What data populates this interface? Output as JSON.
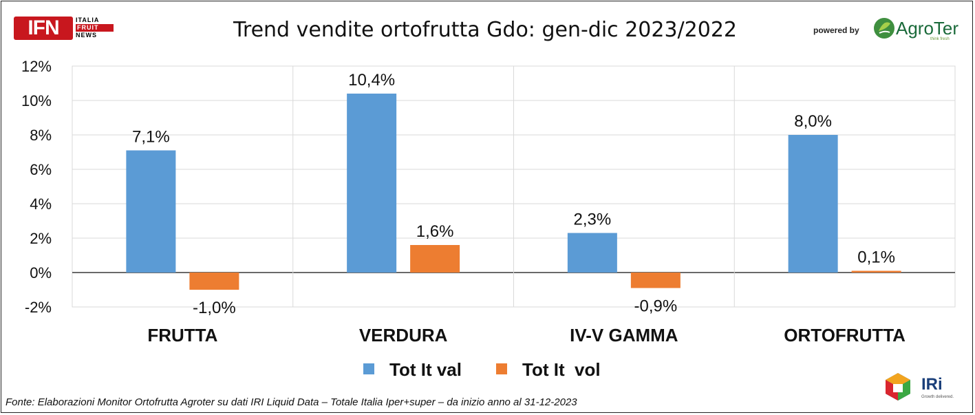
{
  "header": {
    "title": "Trend vendite ortofrutta Gdo: gen-dic 2023/2022",
    "ifn_logo": {
      "mark": "IFN",
      "line1": "ITALIA",
      "line2": "FRUIT",
      "line3": "NEWS"
    },
    "powered_by": "powered by",
    "agroter_logo": {
      "name": "AgroTer",
      "tagline": "think fresh"
    }
  },
  "chart_data": {
    "type": "bar",
    "title": "Trend vendite ortofrutta Gdo: gen-dic 2023/2022",
    "categories": [
      "FRUTTA",
      "VERDURA",
      "IV-V GAMMA",
      "ORTOFRUTTA"
    ],
    "series": [
      {
        "name": "Tot It val",
        "color": "#5b9bd5",
        "values": [
          7.1,
          10.4,
          2.3,
          8.0
        ],
        "labels": [
          "7,1%",
          "10,4%",
          "2,3%",
          "8,0%"
        ]
      },
      {
        "name": "Tot It  vol",
        "color": "#ed7d31",
        "values": [
          -1.0,
          1.6,
          -0.9,
          0.1
        ],
        "labels": [
          "-1,0%",
          "1,6%",
          "-0,9%",
          "0,1%"
        ]
      }
    ],
    "ylim": [
      -2,
      12
    ],
    "yticks": [
      -2,
      0,
      2,
      4,
      6,
      8,
      10,
      12
    ],
    "ytick_labels": [
      "-2%",
      "0%",
      "2%",
      "4%",
      "6%",
      "8%",
      "10%",
      "12%"
    ],
    "xlabel": "",
    "ylabel": "",
    "grid": true,
    "legend_position": "bottom"
  },
  "footer": {
    "source": "Fonte: Elaborazioni Monitor Ortofrutta Agroter su dati IRI Liquid Data – Totale Italia Iper+super –  da inizio anno al 31-12-2023",
    "iri_logo": {
      "name": "IRi",
      "tagline": "Growth delivered."
    }
  }
}
